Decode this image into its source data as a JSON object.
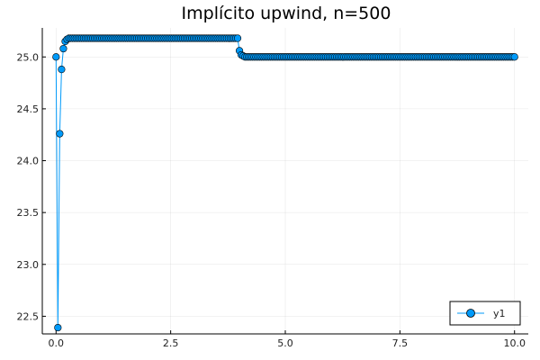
{
  "chart_data": {
    "type": "line",
    "title": "Implícito upwind, n=500",
    "xlabel": "",
    "ylabel": "",
    "xlim": [
      -0.3,
      10.3
    ],
    "ylim": [
      22.33,
      25.28
    ],
    "x_ticks": [
      0.0,
      2.5,
      5.0,
      7.5,
      10.0
    ],
    "x_tick_labels": [
      "0.0",
      "2.5",
      "5.0",
      "7.5",
      "10.0"
    ],
    "y_ticks": [
      22.5,
      23.0,
      23.5,
      24.0,
      24.5,
      25.0
    ],
    "y_tick_labels": [
      "22.5",
      "23.0",
      "23.5",
      "24.0",
      "24.5",
      "25.0"
    ],
    "grid": true,
    "legend_position": "bottom-right",
    "series": [
      {
        "name": "y1",
        "color": "#009AFA",
        "marker": "circle",
        "segments": [
          {
            "x": [
              0.0,
              0.04,
              0.08,
              0.12,
              0.16,
              0.2,
              0.24
            ],
            "y": [
              25.0,
              22.39,
              24.26,
              24.88,
              25.08,
              25.15,
              25.17
            ]
          },
          {
            "x_start": 0.28,
            "x_end": 3.92,
            "step": 0.04,
            "y": 25.18
          },
          {
            "x": [
              3.96,
              4.0,
              4.04,
              4.08
            ],
            "y": [
              25.18,
              25.06,
              25.02,
              25.01
            ]
          },
          {
            "x_start": 4.12,
            "x_end": 10.0,
            "step": 0.04,
            "y": 25.0
          }
        ]
      }
    ]
  }
}
